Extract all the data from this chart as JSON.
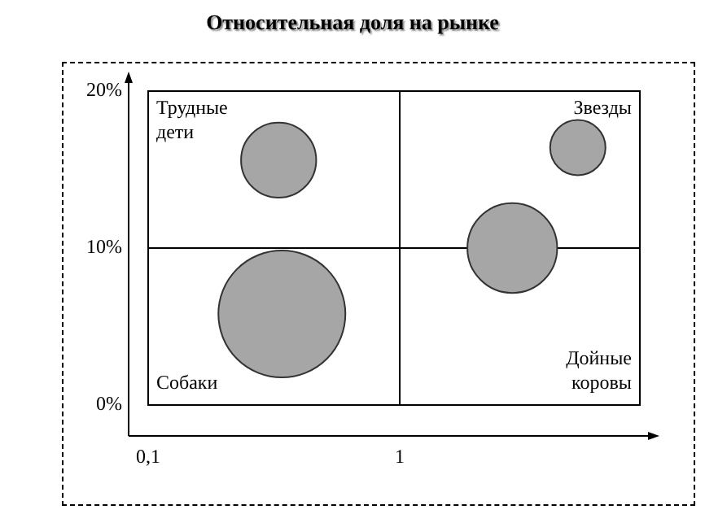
{
  "chart_data": {
    "type": "bubble",
    "title": "Относительная доля на рынке",
    "x": [
      0.33,
      5.1,
      2.8,
      0.34
    ],
    "values": [
      15.6,
      16.4,
      10,
      5.8
    ],
    "sizes": [
      0.35,
      0.19,
      0.5,
      1
    ],
    "color": "#a6a6a6",
    "log": "x",
    "xlim": [
      0.1,
      9
    ],
    "ylim": [
      0,
      20
    ],
    "xticks": [
      {
        "value": 0.1,
        "label": "0,1"
      },
      1
    ],
    "yticks": [
      {
        "value": 0,
        "label": "0%"
      },
      {
        "value": 10,
        "label": "10%"
      },
      {
        "value": 20,
        "label": "20%"
      }
    ],
    "ref_lines": [
      {
        "axis": "x",
        "value": 1
      },
      {
        "axis": "y",
        "value": 10
      }
    ],
    "annotations": [
      "Трудные дети",
      "Звезды",
      "Собаки",
      "Дойные коровы"
    ]
  }
}
